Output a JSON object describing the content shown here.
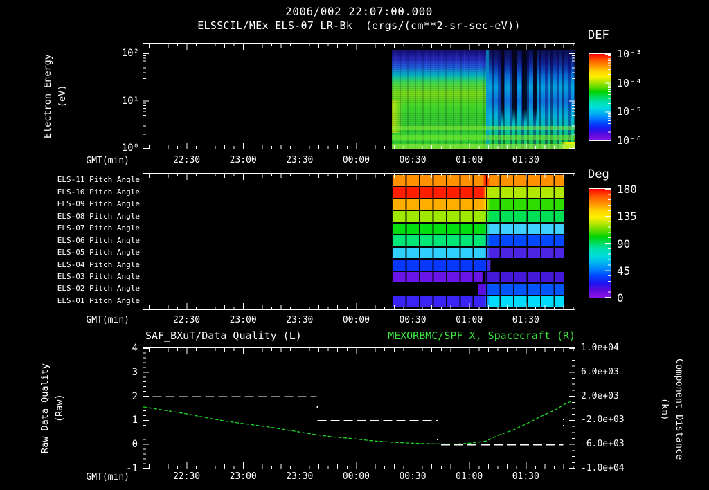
{
  "header": {
    "title": "2006/002 22:07:00.000",
    "subtitle": "ELSSCIL/MEx ELS-07 LR-Bk  (ergs/(cm**2-sr-sec-eV))"
  },
  "time_axis": {
    "label": "GMT(min)",
    "start_time": "22:07:00",
    "total_minutes": 229,
    "major_ticks": [
      {
        "t": 23,
        "label": "22:30"
      },
      {
        "t": 53,
        "label": "23:00"
      },
      {
        "t": 83,
        "label": "23:30"
      },
      {
        "t": 113,
        "label": "00:00"
      },
      {
        "t": 143,
        "label": "00:30"
      },
      {
        "t": 173,
        "label": "01:00"
      },
      {
        "t": 203,
        "label": "01:30"
      }
    ]
  },
  "energy_panel": {
    "ylabel": "Electron Energy",
    "ylabel_units": "(eV)",
    "yticks": [
      {
        "label": "10²",
        "eV": 100
      },
      {
        "label": "10¹",
        "eV": 10
      },
      {
        "label": "10⁰",
        "eV": 1
      }
    ],
    "colorbar": {
      "title": "DEF",
      "ticks": [
        "10⁻³",
        "10⁻⁴",
        "10⁻⁵",
        "10⁻⁶"
      ]
    }
  },
  "pitch_panel": {
    "colorbar": {
      "title": "Deg",
      "ticks": [
        "180",
        "135",
        "90",
        "45",
        "0"
      ],
      "range_deg": [
        0,
        180
      ]
    }
  },
  "quality_panel": {
    "title_left": "SAF_BXuT/Data Quality (L)",
    "title_right": "MEXORBMC/SPF X, Spacecraft (R)",
    "title_right_color": "#3ce83c",
    "ylabel_left": "Raw Data Quality",
    "ylabel_left_units": "(Raw)",
    "ylabel_right": "Component Distance",
    "ylabel_right_units": "(km)",
    "yticks_left": [
      "4",
      "3",
      "2",
      "1",
      "0",
      "-1"
    ],
    "yticks_right": [
      "1.0e+04",
      "6.0e+03",
      "2.0e+03",
      "-2.0e+03",
      "-6.0e+03",
      "-1.0e+04"
    ],
    "ylim_left": [
      -1,
      4
    ],
    "ylim_right": [
      -10000,
      10000
    ]
  },
  "chart_data": [
    {
      "id": "electron-energy-spectrogram",
      "type": "heatmap",
      "title": "ELSSCIL/MEx ELS-07 LR-Bk",
      "units": "ergs/(cm**2-sr-sec-eV)",
      "ylabel": "Electron Energy (eV)",
      "yscale": "log",
      "ylim_eV": [
        1,
        158
      ],
      "colorbar_title": "DEF",
      "colorbar_range": [
        1e-06,
        0.001
      ],
      "data_start_min": 132,
      "data_end_min": 229,
      "phases": [
        {
          "t": [
            132,
            182
          ],
          "description": "broad warm green/yellow-green electron flux, dark-blue above ~40 eV",
          "vstops": [
            [
              0,
              "#1d1596"
            ],
            [
              9,
              "#2a2fd0"
            ],
            [
              17,
              "#2060e0"
            ],
            [
              25,
              "#00b4c8"
            ],
            [
              33,
              "#3cd24a"
            ],
            [
              44,
              "#7ade18"
            ],
            [
              58,
              "#3cd228"
            ],
            [
              78,
              "#32cc32"
            ],
            [
              100,
              "#2fd02f"
            ]
          ]
        },
        {
          "t": [
            182,
            229
          ],
          "description": "striated cyan/blue flux with dark dropouts",
          "vstops": [
            [
              0,
              "#16107e"
            ],
            [
              12,
              "#1c1ca8"
            ],
            [
              24,
              "#0a50c8"
            ],
            [
              38,
              "#00a0dc"
            ],
            [
              52,
              "#1064d2"
            ],
            [
              66,
              "#00b4d2"
            ],
            [
              80,
              "#00c89b"
            ],
            [
              92,
              "#1ed228"
            ],
            [
              100,
              "#28d228"
            ]
          ]
        }
      ],
      "dark_streaks_t": [
        [
          190,
          191.5
        ],
        [
          195.5,
          198
        ],
        [
          201,
          203.5
        ],
        [
          207,
          209
        ]
      ],
      "hot_left_patch_color": "#c8e60a",
      "bottom_right_patch_color": "#e6f000"
    },
    {
      "id": "pitch-angle-panel",
      "type": "heatmap",
      "colorbar_title": "Deg",
      "colorbar_range": [
        0,
        180
      ],
      "cell_minutes": 7.15,
      "data_range_min": [
        132,
        223.5
      ],
      "rows": [
        {
          "label": "ELS-11 Pitch Angle",
          "stops": [
            [
              132,
              "#ff9100"
            ],
            [
              180,
              "#ff9100"
            ],
            [
              181.5,
              "#ff2000"
            ],
            [
              182.5,
              "#ff2000"
            ],
            [
              184,
              "#ff9100"
            ],
            [
              223.5,
              "#ff9100"
            ]
          ]
        },
        {
          "label": "ELS-10 Pitch Angle",
          "stops": [
            [
              132,
              "#ff1e00"
            ],
            [
              180.5,
              "#ff1e00"
            ],
            [
              182,
              "#ffd200"
            ],
            [
              183.5,
              "#b2e800"
            ],
            [
              223.5,
              "#b2e800"
            ]
          ]
        },
        {
          "label": "ELS-09 Pitch Angle",
          "stops": [
            [
              132,
              "#ffae00"
            ],
            [
              180.5,
              "#ffae00"
            ],
            [
              182,
              "#ffe800"
            ],
            [
              184,
              "#2fdc00"
            ],
            [
              223.5,
              "#2fdc00"
            ]
          ]
        },
        {
          "label": "ELS-08 Pitch Angle",
          "stops": [
            [
              132,
              "#9fe800"
            ],
            [
              181,
              "#9fe800"
            ],
            [
              184,
              "#00e055"
            ],
            [
              223.5,
              "#00e055"
            ]
          ]
        },
        {
          "label": "ELS-07 Pitch Angle",
          "stops": [
            [
              132,
              "#00dd11"
            ],
            [
              181,
              "#00dd11"
            ],
            [
              184,
              "#3fd0ff"
            ],
            [
              223.5,
              "#3fd0ff"
            ]
          ]
        },
        {
          "label": "ELS-06 Pitch Angle",
          "stops": [
            [
              132,
              "#00e875"
            ],
            [
              181,
              "#00e875"
            ],
            [
              184,
              "#0049ff"
            ],
            [
              223.5,
              "#0049ff"
            ]
          ]
        },
        {
          "label": "ELS-05 Pitch Angle",
          "stops": [
            [
              132,
              "#2fd0ff"
            ],
            [
              181,
              "#2fd0ff"
            ],
            [
              184,
              "#4b24e4"
            ],
            [
              223.5,
              "#4b24e4"
            ]
          ]
        },
        {
          "label": "ELS-04 Pitch Angle",
          "stops": [
            [
              132,
              "#0838ff"
            ],
            [
              182.5,
              "#0838ff"
            ],
            [
              183.8,
              "#5c24e0"
            ],
            [
              184.6,
              "#000000"
            ],
            [
              223.5,
              "#000000"
            ]
          ]
        },
        {
          "label": "ELS-03 Pitch Angle",
          "stops": [
            [
              132,
              "#6a14e8"
            ],
            [
              179.8,
              "#6a14e8"
            ],
            [
              180.4,
              "#000000"
            ],
            [
              181.4,
              "#000000"
            ],
            [
              182,
              "#4418d8"
            ],
            [
              223.5,
              "#4418d8"
            ]
          ]
        },
        {
          "label": "ELS-02 Pitch Angle",
          "stops": [
            [
              177.8,
              "#5c0ee0"
            ],
            [
              181,
              "#5c0ee0"
            ],
            [
              183.5,
              "#0055ff"
            ],
            [
              223.5,
              "#0055ff"
            ]
          ]
        },
        {
          "label": "ELS-01 Pitch Angle",
          "stops": [
            [
              132,
              "#3a23f5"
            ],
            [
              181,
              "#3a23f5"
            ],
            [
              184,
              "#00dcff"
            ],
            [
              223.5,
              "#00dcff"
            ]
          ]
        }
      ]
    },
    {
      "id": "quality-and-distance",
      "type": "line",
      "ylim_left": [
        -1,
        4
      ],
      "ylim_right": [
        -10000,
        10000
      ],
      "series": [
        {
          "name": "SAF_BXuT/Data Quality (L)",
          "axis": "left",
          "color": "#ffffff",
          "style": "dashed",
          "segments": [
            {
              "value": 2,
              "t_start": 5,
              "t_end": 92
            },
            {
              "value": 1,
              "t_start": 92.5,
              "t_end": 156.5
            },
            {
              "value": 0,
              "t_start": 158,
              "t_end": 223
            }
          ]
        },
        {
          "name": "MEXORBMC/SPF X, Spacecraft (R)",
          "axis": "right",
          "color": "#1fd62a",
          "style": "dashed",
          "t": [
            0,
            12,
            23,
            34,
            45,
            56,
            67,
            78,
            89,
            100,
            111,
            122,
            133,
            144,
            159,
            167,
            174,
            182,
            189,
            196,
            204,
            211,
            219,
            224,
            228
          ],
          "km": [
            240,
            -360,
            -920,
            -1600,
            -2200,
            -2640,
            -3120,
            -3680,
            -4240,
            -4720,
            -5040,
            -5400,
            -5640,
            -5800,
            -5920,
            -5920,
            -5760,
            -5440,
            -4400,
            -3640,
            -2480,
            -1360,
            -200,
            760,
            1280
          ]
        }
      ],
      "stray_points_left_axis": [
        {
          "t": 92.5,
          "raw": 1.56
        },
        {
          "t": 156.3,
          "raw": 0.21
        },
        {
          "t": 223.2,
          "raw": 1.04
        },
        {
          "t": 223.2,
          "raw": 0.78
        }
      ]
    }
  ]
}
